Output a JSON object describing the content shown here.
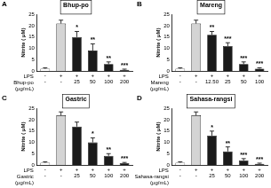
{
  "chart_data": [
    {
      "type": "bar",
      "panel": "A",
      "title": "Bhup-po",
      "y_label": "Nitrite ( μM)",
      "categories": [
        [
          "-",
          "-"
        ],
        [
          "+",
          "-"
        ],
        [
          "+",
          "25"
        ],
        [
          "+",
          "50"
        ],
        [
          "+",
          "100"
        ],
        [
          "+",
          "200"
        ]
      ],
      "row_labels": [
        "LPS",
        "Bhup-po (μg/mL)"
      ],
      "values": [
        1,
        21,
        15,
        9,
        3,
        0.5
      ],
      "errors": [
        0.4,
        1.5,
        2.5,
        3,
        1,
        0.3
      ],
      "annotations": [
        null,
        null,
        "*",
        "**",
        "**",
        "***"
      ],
      "colors": [
        "#ffffff",
        "#d4d4d4",
        "#1a1a1a",
        "#1a1a1a",
        "#1a1a1a",
        "#1a1a1a"
      ],
      "ylim": [
        0,
        25
      ],
      "yticks": [
        0,
        5,
        10,
        15,
        20,
        25
      ],
      "grid": false
    },
    {
      "type": "bar",
      "panel": "B",
      "title": "Mareng",
      "y_label": "Nitrite ( μM)",
      "categories": [
        [
          "-",
          "-"
        ],
        [
          "+",
          "-"
        ],
        [
          "+",
          "12.50"
        ],
        [
          "+",
          "25"
        ],
        [
          "+",
          "50"
        ],
        [
          "+",
          "100"
        ]
      ],
      "row_labels": [
        "LPS",
        "Mareng (μg/mL)"
      ],
      "values": [
        1,
        21,
        16,
        11,
        3,
        1
      ],
      "errors": [
        0.4,
        1.5,
        1.5,
        1.5,
        1,
        0.4
      ],
      "annotations": [
        null,
        null,
        "**",
        "***",
        "***",
        "***"
      ],
      "colors": [
        "#ffffff",
        "#d4d4d4",
        "#1a1a1a",
        "#1a1a1a",
        "#1a1a1a",
        "#1a1a1a"
      ],
      "ylim": [
        0,
        25
      ],
      "yticks": [
        0,
        5,
        10,
        15,
        20,
        25
      ],
      "grid": false
    },
    {
      "type": "bar",
      "panel": "C",
      "title": "Gastric",
      "y_label": "Nitrite ( μM)",
      "categories": [
        [
          "-",
          "-"
        ],
        [
          "+",
          "-"
        ],
        [
          "+",
          "25"
        ],
        [
          "+",
          "50"
        ],
        [
          "+",
          "100"
        ],
        [
          "+",
          "200"
        ]
      ],
      "row_labels": [
        "LPS",
        "Gastric (μg/mL)"
      ],
      "values": [
        1,
        22,
        17,
        10,
        4,
        0.8
      ],
      "errors": [
        0.4,
        1.5,
        2,
        2,
        1,
        0.3
      ],
      "annotations": [
        null,
        null,
        null,
        "*",
        "**",
        "***"
      ],
      "colors": [
        "#ffffff",
        "#d4d4d4",
        "#1a1a1a",
        "#1a1a1a",
        "#1a1a1a",
        "#1a1a1a"
      ],
      "ylim": [
        0,
        25
      ],
      "yticks": [
        0,
        5,
        10,
        15,
        20,
        25
      ],
      "grid": false
    },
    {
      "type": "bar",
      "panel": "D",
      "title": "Sahasa-rangsi",
      "y_label": "Nitrite ( μM)",
      "categories": [
        [
          "-",
          "-"
        ],
        [
          "+",
          "-"
        ],
        [
          "+",
          "25"
        ],
        [
          "+",
          "50"
        ],
        [
          "+",
          "100"
        ],
        [
          "+",
          "200"
        ]
      ],
      "row_labels": [
        "LPS",
        "Sahasa-rangsi (μg/mL)"
      ],
      "values": [
        1,
        22,
        13,
        6,
        2,
        0.5
      ],
      "errors": [
        0.4,
        1.5,
        2,
        2,
        0.8,
        0.3
      ],
      "annotations": [
        null,
        null,
        "*",
        "**",
        "***",
        "***"
      ],
      "colors": [
        "#ffffff",
        "#d4d4d4",
        "#1a1a1a",
        "#1a1a1a",
        "#1a1a1a",
        "#1a1a1a"
      ],
      "ylim": [
        0,
        25
      ],
      "yticks": [
        0,
        5,
        10,
        15,
        20,
        25
      ],
      "grid": false
    }
  ]
}
